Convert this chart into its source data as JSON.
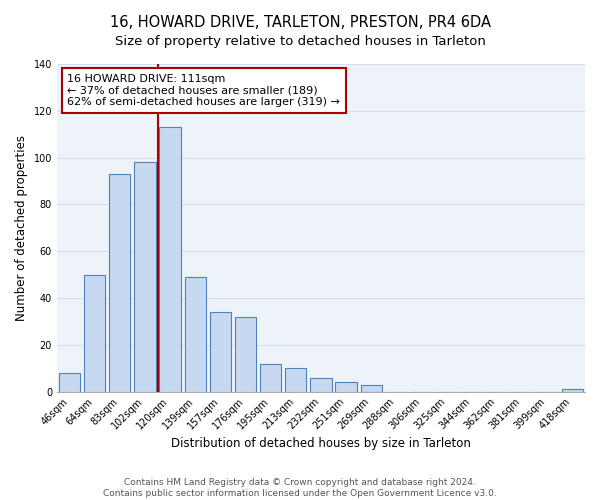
{
  "title": "16, HOWARD DRIVE, TARLETON, PRESTON, PR4 6DA",
  "subtitle": "Size of property relative to detached houses in Tarleton",
  "xlabel": "Distribution of detached houses by size in Tarleton",
  "ylabel": "Number of detached properties",
  "bar_labels": [
    "46sqm",
    "64sqm",
    "83sqm",
    "102sqm",
    "120sqm",
    "139sqm",
    "157sqm",
    "176sqm",
    "195sqm",
    "213sqm",
    "232sqm",
    "251sqm",
    "269sqm",
    "288sqm",
    "306sqm",
    "325sqm",
    "344sqm",
    "362sqm",
    "381sqm",
    "399sqm",
    "418sqm"
  ],
  "bar_values": [
    8,
    50,
    93,
    98,
    113,
    49,
    34,
    32,
    12,
    10,
    6,
    4,
    3,
    0,
    0,
    0,
    0,
    0,
    0,
    0,
    1
  ],
  "bar_color": "#c6d9f0",
  "bar_edge_color": "#4f81bd",
  "highlight_line_between": 3,
  "highlight_color": "#aa0000",
  "ylim": [
    0,
    140
  ],
  "yticks": [
    0,
    20,
    40,
    60,
    80,
    100,
    120,
    140
  ],
  "annotation_title": "16 HOWARD DRIVE: 111sqm",
  "annotation_line1": "← 37% of detached houses are smaller (189)",
  "annotation_line2": "62% of semi-detached houses are larger (319) →",
  "footer_line1": "Contains HM Land Registry data © Crown copyright and database right 2024.",
  "footer_line2": "Contains public sector information licensed under the Open Government Licence v3.0.",
  "title_fontsize": 10.5,
  "subtitle_fontsize": 9.5,
  "tick_fontsize": 7,
  "ylabel_fontsize": 8.5,
  "xlabel_fontsize": 8.5,
  "footer_fontsize": 6.5
}
